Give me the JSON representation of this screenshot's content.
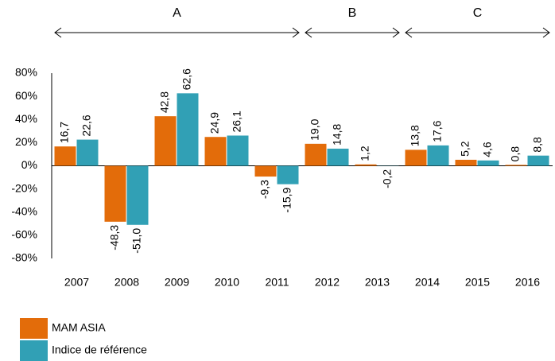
{
  "chart_data": {
    "type": "bar",
    "categories": [
      "2007",
      "2008",
      "2009",
      "2010",
      "2011",
      "2012",
      "2013",
      "2014",
      "2015",
      "2016"
    ],
    "series": [
      {
        "name": "MAM ASIA",
        "color": "#e36c0a",
        "values": [
          16.7,
          -48.3,
          42.8,
          24.9,
          -9.3,
          19.0,
          1.2,
          13.8,
          5.2,
          0.8
        ],
        "value_labels": [
          "16,7",
          "-48,3",
          "42,8",
          "24,9",
          "-9,3",
          "19,0",
          "1,2",
          "13,8",
          "5,2",
          "0,8"
        ]
      },
      {
        "name": "Indice de référence",
        "color": "#31a0b5",
        "values": [
          22.6,
          -51.0,
          62.6,
          26.1,
          -15.9,
          14.8,
          -0.2,
          17.6,
          4.6,
          8.8
        ],
        "value_labels": [
          "22,6",
          "-51,0",
          "62,6",
          "26,1",
          "-15,9",
          "14,8",
          "-0,2",
          "17,6",
          "4,6",
          "8,8"
        ]
      }
    ],
    "periods": [
      {
        "label": "A"
      },
      {
        "label": "B"
      },
      {
        "label": "C"
      }
    ],
    "ylim": [
      -80,
      80
    ],
    "yticks": [
      {
        "value": 80,
        "label": "80%"
      },
      {
        "value": 60,
        "label": "60%"
      },
      {
        "value": 40,
        "label": "40%"
      },
      {
        "value": 20,
        "label": "20%"
      },
      {
        "value": 0,
        "label": "0%"
      },
      {
        "value": -20,
        "label": "-20%"
      },
      {
        "value": -40,
        "label": "-40%"
      },
      {
        "value": -60,
        "label": "-60%"
      },
      {
        "value": -80,
        "label": "-80%"
      }
    ],
    "grid": false
  }
}
